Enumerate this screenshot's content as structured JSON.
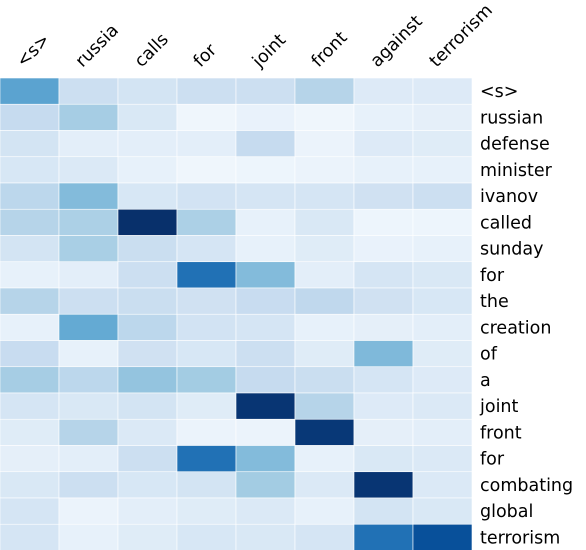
{
  "chart_data": {
    "type": "heatmap",
    "x_labels": [
      "<s>",
      "russia",
      "calls",
      "for",
      "joint",
      "front",
      "against",
      "terrorism"
    ],
    "y_labels": [
      "<s>",
      "russian",
      "defense",
      "minister",
      "ivanov",
      "called",
      "sunday",
      "for",
      "the",
      "creation",
      "of",
      "a",
      "joint",
      "front",
      "for",
      "combating",
      "global",
      "terrorism"
    ],
    "value_range": [
      0,
      1
    ],
    "colormap": "Blues",
    "values": [
      [
        0.55,
        0.22,
        0.18,
        0.22,
        0.22,
        0.3,
        0.13,
        0.13
      ],
      [
        0.25,
        0.35,
        0.15,
        0.04,
        0.07,
        0.04,
        0.08,
        0.09
      ],
      [
        0.18,
        0.1,
        0.1,
        0.1,
        0.25,
        0.06,
        0.13,
        0.12
      ],
      [
        0.16,
        0.14,
        0.08,
        0.04,
        0.05,
        0.06,
        0.08,
        0.08
      ],
      [
        0.28,
        0.44,
        0.16,
        0.19,
        0.17,
        0.17,
        0.2,
        0.22
      ],
      [
        0.3,
        0.33,
        1.0,
        0.33,
        0.08,
        0.15,
        0.05,
        0.05
      ],
      [
        0.18,
        0.34,
        0.23,
        0.17,
        0.08,
        0.12,
        0.07,
        0.08
      ],
      [
        0.08,
        0.1,
        0.22,
        0.75,
        0.44,
        0.1,
        0.17,
        0.15
      ],
      [
        0.3,
        0.22,
        0.23,
        0.2,
        0.24,
        0.27,
        0.2,
        0.16
      ],
      [
        0.08,
        0.52,
        0.28,
        0.19,
        0.17,
        0.08,
        0.09,
        0.1
      ],
      [
        0.24,
        0.08,
        0.2,
        0.16,
        0.22,
        0.12,
        0.45,
        0.12
      ],
      [
        0.35,
        0.28,
        0.4,
        0.36,
        0.25,
        0.23,
        0.17,
        0.13
      ],
      [
        0.17,
        0.15,
        0.18,
        0.12,
        0.98,
        0.3,
        0.13,
        0.14
      ],
      [
        0.12,
        0.3,
        0.14,
        0.06,
        0.06,
        0.97,
        0.09,
        0.1
      ],
      [
        0.09,
        0.1,
        0.22,
        0.75,
        0.44,
        0.08,
        0.15,
        0.14
      ],
      [
        0.15,
        0.22,
        0.16,
        0.18,
        0.36,
        0.14,
        0.98,
        0.14
      ],
      [
        0.17,
        0.06,
        0.1,
        0.12,
        0.14,
        0.08,
        0.18,
        0.15
      ],
      [
        0.17,
        0.08,
        0.12,
        0.16,
        0.15,
        0.17,
        0.75,
        0.88
      ]
    ]
  }
}
